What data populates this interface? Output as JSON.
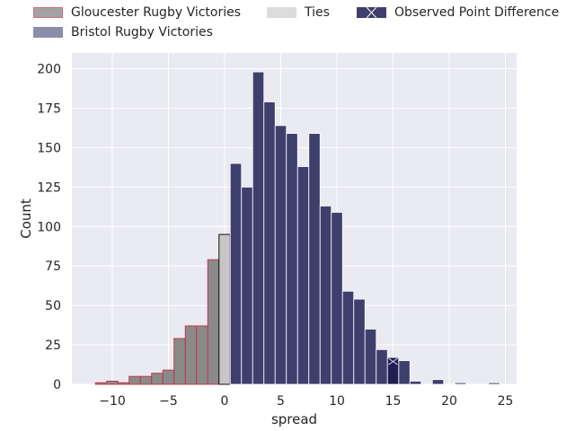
{
  "chart_data": {
    "type": "bar",
    "xlabel": "spread",
    "ylabel": "Count",
    "xlim": [
      -13.6,
      26.0
    ],
    "ylim": [
      0,
      210
    ],
    "xticks": [
      -10,
      -5,
      0,
      5,
      10,
      15,
      20,
      25
    ],
    "yticks": [
      0,
      25,
      50,
      75,
      100,
      125,
      150,
      175,
      200
    ],
    "grid": true,
    "legend": {
      "placement": "top",
      "columns": 3
    },
    "colors": {
      "gloucester": "#8a8a8a",
      "gloucester_edge": "#c0394b",
      "bristol": "#3f3f6e",
      "bristol_alpha": "#8c8cab",
      "ties": "#c6c6c6",
      "observed": "#1f1f52",
      "grid_bg": "#eaeaf2"
    },
    "bin_width": 1,
    "series": [
      {
        "name": "Gloucester Rugby Victories",
        "bins": [
          {
            "x0": -11.5,
            "count": 1
          },
          {
            "x0": -10.5,
            "count": 2
          },
          {
            "x0": -9.5,
            "count": 1
          },
          {
            "x0": -8.5,
            "count": 5
          },
          {
            "x0": -7.5,
            "count": 5
          },
          {
            "x0": -6.5,
            "count": 7
          },
          {
            "x0": -5.5,
            "count": 9
          },
          {
            "x0": -4.5,
            "count": 29
          },
          {
            "x0": -3.5,
            "count": 37
          },
          {
            "x0": -2.5,
            "count": 37
          },
          {
            "x0": -1.5,
            "count": 79
          }
        ]
      },
      {
        "name": "Ties",
        "bins": [
          {
            "x0": -0.5,
            "count": 95
          }
        ]
      },
      {
        "name": "Bristol Rugby Victories",
        "bins": [
          {
            "x0": 0.5,
            "count": 140
          },
          {
            "x0": 1.5,
            "count": 125
          },
          {
            "x0": 2.5,
            "count": 198
          },
          {
            "x0": 3.5,
            "count": 179
          },
          {
            "x0": 4.5,
            "count": 164
          },
          {
            "x0": 5.5,
            "count": 159
          },
          {
            "x0": 6.5,
            "count": 138
          },
          {
            "x0": 7.5,
            "count": 159
          },
          {
            "x0": 8.5,
            "count": 113
          },
          {
            "x0": 9.5,
            "count": 109
          },
          {
            "x0": 10.5,
            "count": 59
          },
          {
            "x0": 11.5,
            "count": 54
          },
          {
            "x0": 12.5,
            "count": 35
          },
          {
            "x0": 13.5,
            "count": 22
          },
          {
            "x0": 15.5,
            "count": 15
          },
          {
            "x0": 16.5,
            "count": 2
          },
          {
            "x0": 18.5,
            "count": 3
          },
          {
            "x0": 20.5,
            "count": 1
          },
          {
            "x0": 23.5,
            "count": 1
          }
        ]
      },
      {
        "name": "Observed Point Difference",
        "bins": [
          {
            "x0": 14.5,
            "count": 17
          }
        ]
      }
    ]
  }
}
